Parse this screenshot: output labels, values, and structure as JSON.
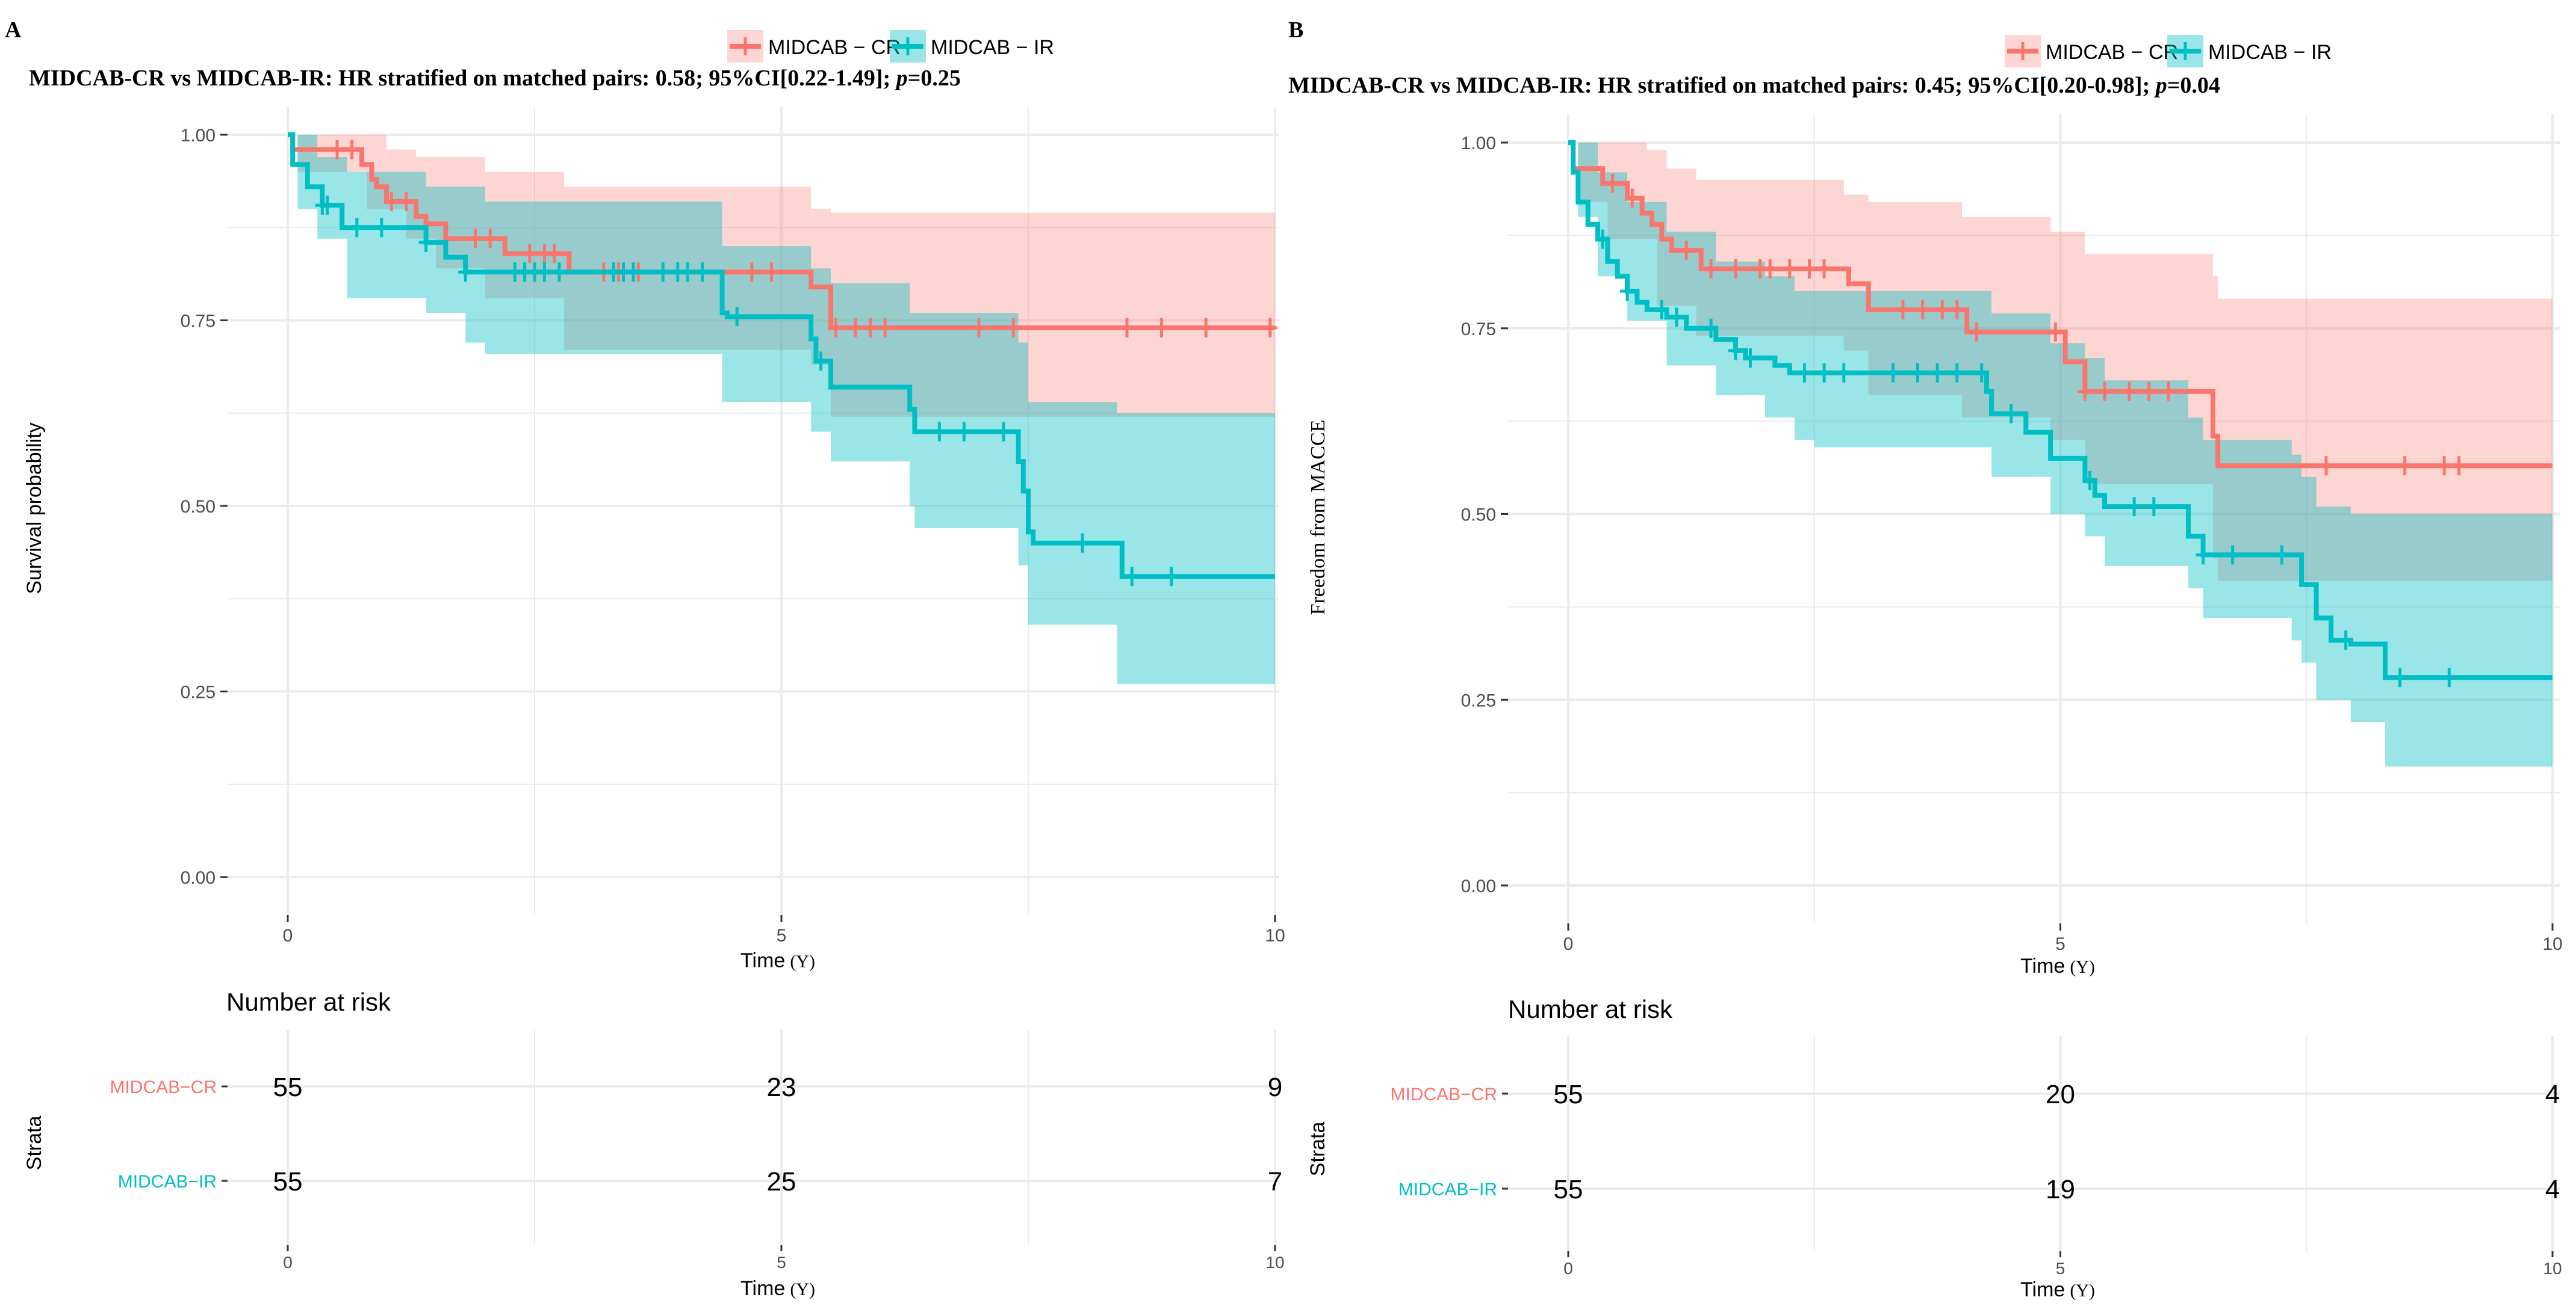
{
  "colors": {
    "cr": "#F8766D",
    "ir": "#00BFC4",
    "grid": "#EBEBEB",
    "axis_text": "#4D4D4D",
    "text": "#000000",
    "cr_band": "#F8766D",
    "ir_band": "#00BFC4"
  },
  "chart_data": [
    {
      "type": "line",
      "panel_label": "A",
      "title": "MIDCAB-CR vs MIDCAB-IR: HR stratified on matched pairs: 0.58; 95%CI[0.22-1.49]; ",
      "title_p": "p",
      "title_end": "=0.25",
      "legend": [
        "MIDCAB − CR",
        "MIDCAB − IR"
      ],
      "ylabel": "Survival probability",
      "xlabel": "Time",
      "xlabel_unit": "(Y)",
      "xlim": [
        0,
        10
      ],
      "ylim": [
        0,
        1
      ],
      "xticks": [
        "0",
        "5",
        "10"
      ],
      "yticks": [
        "0.00",
        "0.25",
        "0.50",
        "0.75",
        "1.00"
      ],
      "series": [
        {
          "name": "MIDCAB - CR",
          "steps": [
            [
              0,
              1.0
            ],
            [
              0.05,
              0.98
            ],
            [
              0.75,
              0.96
            ],
            [
              0.85,
              0.94
            ],
            [
              0.9,
              0.93
            ],
            [
              1.0,
              0.91
            ],
            [
              1.3,
              0.89
            ],
            [
              1.4,
              0.88
            ],
            [
              1.6,
              0.86
            ],
            [
              2.2,
              0.84
            ],
            [
              2.8,
              0.84
            ],
            [
              2.85,
              0.815
            ],
            [
              5.3,
              0.795
            ],
            [
              5.5,
              0.74
            ],
            [
              10,
              0.74
            ]
          ],
          "lower": [
            [
              0,
              1.0
            ],
            [
              0.1,
              0.95
            ],
            [
              0.8,
              0.9
            ],
            [
              1.2,
              0.86
            ],
            [
              1.5,
              0.82
            ],
            [
              2.0,
              0.78
            ],
            [
              2.8,
              0.71
            ],
            [
              5.3,
              0.69
            ],
            [
              5.5,
              0.62
            ],
            [
              10,
              0.62
            ]
          ],
          "upper": [
            [
              0,
              1.0
            ],
            [
              0.8,
              1.0
            ],
            [
              1.0,
              0.98
            ],
            [
              1.3,
              0.97
            ],
            [
              2.0,
              0.95
            ],
            [
              2.8,
              0.93
            ],
            [
              4.4,
              0.93
            ],
            [
              5.3,
              0.9
            ],
            [
              5.5,
              0.895
            ],
            [
              10,
              0.895
            ]
          ],
          "censor_times": [
            0.5,
            0.65,
            1.05,
            1.2,
            1.9,
            2.05,
            2.45,
            2.6,
            2.7,
            3.2,
            3.35,
            3.55,
            4.7,
            4.9,
            5.55,
            5.75,
            5.9,
            6.05,
            7.0,
            7.35,
            8.5,
            8.85,
            9.3,
            9.95
          ]
        },
        {
          "name": "MIDCAB - IR",
          "steps": [
            [
              0,
              1.0
            ],
            [
              0.05,
              0.96
            ],
            [
              0.2,
              0.93
            ],
            [
              0.35,
              0.905
            ],
            [
              0.55,
              0.875
            ],
            [
              1.4,
              0.855
            ],
            [
              1.6,
              0.835
            ],
            [
              1.8,
              0.815
            ],
            [
              2.4,
              0.815
            ],
            [
              4.35,
              0.815
            ],
            [
              4.4,
              0.76
            ],
            [
              4.45,
              0.755
            ],
            [
              5.3,
              0.725
            ],
            [
              5.35,
              0.695
            ],
            [
              5.5,
              0.66
            ],
            [
              6.25,
              0.66
            ],
            [
              6.3,
              0.63
            ],
            [
              6.35,
              0.6
            ],
            [
              7.35,
              0.6
            ],
            [
              7.4,
              0.56
            ],
            [
              7.45,
              0.52
            ],
            [
              7.5,
              0.465
            ],
            [
              7.55,
              0.45
            ],
            [
              8.4,
              0.45
            ],
            [
              8.45,
              0.405
            ],
            [
              10,
              0.405
            ]
          ],
          "lower": [
            [
              0,
              1.0
            ],
            [
              0.1,
              0.9
            ],
            [
              0.3,
              0.86
            ],
            [
              0.6,
              0.78
            ],
            [
              1.4,
              0.76
            ],
            [
              1.8,
              0.72
            ],
            [
              2.0,
              0.705
            ],
            [
              4.35,
              0.705
            ],
            [
              4.4,
              0.64
            ],
            [
              5.3,
              0.6
            ],
            [
              5.5,
              0.56
            ],
            [
              6.3,
              0.5
            ],
            [
              6.35,
              0.47
            ],
            [
              7.4,
              0.42
            ],
            [
              7.5,
              0.34
            ],
            [
              8.4,
              0.26
            ],
            [
              10,
              0.26
            ]
          ],
          "upper": [
            [
              0,
              1.0
            ],
            [
              0.3,
              0.97
            ],
            [
              0.6,
              0.95
            ],
            [
              1.4,
              0.93
            ],
            [
              2.0,
              0.91
            ],
            [
              4.35,
              0.91
            ],
            [
              4.4,
              0.85
            ],
            [
              5.3,
              0.82
            ],
            [
              5.5,
              0.8
            ],
            [
              6.3,
              0.76
            ],
            [
              7.4,
              0.72
            ],
            [
              7.5,
              0.64
            ],
            [
              8.4,
              0.625
            ],
            [
              10,
              0.625
            ]
          ],
          "censor_times": [
            0.35,
            0.4,
            0.7,
            0.95,
            1.4,
            1.8,
            2.3,
            2.4,
            2.5,
            2.6,
            2.75,
            3.3,
            3.4,
            3.5,
            3.8,
            3.95,
            4.05,
            4.2,
            4.55,
            5.4,
            6.6,
            6.85,
            7.25,
            8.05,
            8.55,
            8.95
          ]
        }
      ],
      "risk_table": {
        "title": "Number at risk",
        "ylabel": "Strata",
        "xlabel": "Time",
        "xlabel_unit": "(Y)",
        "times": [
          "0",
          "5",
          "10"
        ],
        "strata": [
          "MIDCAB−CR",
          "MIDCAB−IR"
        ],
        "counts": [
          [
            "55",
            "23",
            "9"
          ],
          [
            "55",
            "25",
            "7"
          ]
        ]
      }
    },
    {
      "type": "line",
      "panel_label": "B",
      "title": "MIDCAB-CR vs MIDCAB-IR: HR stratified on matched pairs: 0.45; 95%CI[0.20-0.98]; ",
      "title_p": "p",
      "title_end": "=0.04",
      "legend": [
        "MIDCAB − CR",
        "MIDCAB − IR"
      ],
      "ylabel": "Freedom from MACCE",
      "xlabel": "Time",
      "xlabel_unit": "(Y)",
      "xlim": [
        0,
        10
      ],
      "ylim": [
        0,
        1
      ],
      "xticks": [
        "0",
        "5",
        "10"
      ],
      "yticks": [
        "0.00",
        "0.25",
        "0.50",
        "0.75",
        "1.00"
      ],
      "series": [
        {
          "name": "MIDCAB - CR",
          "steps": [
            [
              0,
              1.0
            ],
            [
              0.05,
              0.965
            ],
            [
              0.35,
              0.945
            ],
            [
              0.6,
              0.925
            ],
            [
              0.75,
              0.905
            ],
            [
              0.85,
              0.89
            ],
            [
              0.95,
              0.87
            ],
            [
              1.05,
              0.855
            ],
            [
              1.3,
              0.855
            ],
            [
              1.35,
              0.83
            ],
            [
              2.8,
              0.83
            ],
            [
              2.85,
              0.81
            ],
            [
              3.05,
              0.775
            ],
            [
              4.0,
              0.775
            ],
            [
              4.05,
              0.745
            ],
            [
              4.9,
              0.745
            ],
            [
              5.05,
              0.705
            ],
            [
              5.25,
              0.665
            ],
            [
              6.2,
              0.665
            ],
            [
              6.55,
              0.605
            ],
            [
              6.6,
              0.565
            ],
            [
              10,
              0.565
            ]
          ],
          "lower": [
            [
              0,
              1.0
            ],
            [
              0.1,
              0.92
            ],
            [
              0.4,
              0.87
            ],
            [
              0.9,
              0.78
            ],
            [
              1.3,
              0.74
            ],
            [
              2.8,
              0.72
            ],
            [
              3.05,
              0.66
            ],
            [
              4.0,
              0.63
            ],
            [
              4.9,
              0.6
            ],
            [
              5.25,
              0.54
            ],
            [
              6.55,
              0.44
            ],
            [
              6.6,
              0.41
            ],
            [
              10,
              0.41
            ]
          ],
          "upper": [
            [
              0,
              1.0
            ],
            [
              0.8,
              0.99
            ],
            [
              1.0,
              0.965
            ],
            [
              1.3,
              0.95
            ],
            [
              2.8,
              0.93
            ],
            [
              3.05,
              0.92
            ],
            [
              4.0,
              0.9
            ],
            [
              4.9,
              0.88
            ],
            [
              5.25,
              0.85
            ],
            [
              6.55,
              0.82
            ],
            [
              6.6,
              0.79
            ],
            [
              10,
              0.79
            ]
          ],
          "censor_times": [
            0.45,
            0.65,
            1.2,
            1.45,
            1.7,
            1.95,
            2.05,
            2.25,
            2.45,
            2.6,
            3.4,
            3.6,
            3.8,
            3.95,
            4.15,
            4.95,
            5.25,
            5.45,
            5.7,
            5.9,
            6.1,
            7.7,
            8.5,
            8.9,
            9.05
          ]
        },
        {
          "name": "MIDCAB - IR",
          "steps": [
            [
              0,
              1.0
            ],
            [
              0.05,
              0.96
            ],
            [
              0.1,
              0.92
            ],
            [
              0.2,
              0.89
            ],
            [
              0.3,
              0.87
            ],
            [
              0.4,
              0.84
            ],
            [
              0.5,
              0.82
            ],
            [
              0.6,
              0.8
            ],
            [
              0.7,
              0.785
            ],
            [
              0.8,
              0.775
            ],
            [
              1.0,
              0.765
            ],
            [
              1.2,
              0.75
            ],
            [
              1.5,
              0.735
            ],
            [
              1.7,
              0.72
            ],
            [
              1.8,
              0.71
            ],
            [
              2.1,
              0.7
            ],
            [
              2.25,
              0.69
            ],
            [
              4.2,
              0.69
            ],
            [
              4.25,
              0.665
            ],
            [
              4.3,
              0.635
            ],
            [
              4.65,
              0.61
            ],
            [
              4.9,
              0.575
            ],
            [
              5.25,
              0.545
            ],
            [
              5.35,
              0.525
            ],
            [
              5.45,
              0.51
            ],
            [
              6.25,
              0.51
            ],
            [
              6.3,
              0.47
            ],
            [
              6.45,
              0.445
            ],
            [
              7.35,
              0.445
            ],
            [
              7.45,
              0.405
            ],
            [
              7.6,
              0.36
            ],
            [
              7.75,
              0.33
            ],
            [
              7.95,
              0.325
            ],
            [
              8.25,
              0.325
            ],
            [
              8.3,
              0.28
            ],
            [
              10,
              0.28
            ]
          ],
          "lower": [
            [
              0,
              1.0
            ],
            [
              0.1,
              0.9
            ],
            [
              0.3,
              0.82
            ],
            [
              0.6,
              0.76
            ],
            [
              1.0,
              0.7
            ],
            [
              1.5,
              0.66
            ],
            [
              2.0,
              0.63
            ],
            [
              2.3,
              0.6
            ],
            [
              2.5,
              0.59
            ],
            [
              4.0,
              0.59
            ],
            [
              4.3,
              0.55
            ],
            [
              4.9,
              0.5
            ],
            [
              5.25,
              0.47
            ],
            [
              5.45,
              0.43
            ],
            [
              6.3,
              0.4
            ],
            [
              6.45,
              0.36
            ],
            [
              7.35,
              0.33
            ],
            [
              7.45,
              0.3
            ],
            [
              7.6,
              0.25
            ],
            [
              7.95,
              0.22
            ],
            [
              8.3,
              0.16
            ],
            [
              10,
              0.16
            ]
          ],
          "upper": [
            [
              0,
              1.0
            ],
            [
              0.3,
              0.96
            ],
            [
              0.6,
              0.92
            ],
            [
              1.0,
              0.88
            ],
            [
              1.5,
              0.84
            ],
            [
              2.0,
              0.82
            ],
            [
              2.3,
              0.8
            ],
            [
              4.0,
              0.8
            ],
            [
              4.3,
              0.77
            ],
            [
              4.9,
              0.73
            ],
            [
              5.25,
              0.71
            ],
            [
              5.45,
              0.68
            ],
            [
              6.3,
              0.63
            ],
            [
              6.45,
              0.6
            ],
            [
              7.35,
              0.58
            ],
            [
              7.45,
              0.55
            ],
            [
              7.6,
              0.51
            ],
            [
              7.95,
              0.5
            ],
            [
              10,
              0.5
            ]
          ],
          "censor_times": [
            0.35,
            0.6,
            0.95,
            1.1,
            1.45,
            1.7,
            1.85,
            2.4,
            2.6,
            2.8,
            3.3,
            3.55,
            3.75,
            3.95,
            4.2,
            4.5,
            5.3,
            5.75,
            5.95,
            6.45,
            6.75,
            7.25,
            7.9,
            8.45,
            8.95
          ]
        }
      ],
      "risk_table": {
        "title": "Number at risk",
        "ylabel": "Strata",
        "xlabel": "Time",
        "xlabel_unit": "(Y)",
        "times": [
          "0",
          "5",
          "10"
        ],
        "strata": [
          "MIDCAB−CR",
          "MIDCAB−IR"
        ],
        "counts": [
          [
            "55",
            "20",
            "4"
          ],
          [
            "55",
            "19",
            "4"
          ]
        ]
      }
    }
  ]
}
